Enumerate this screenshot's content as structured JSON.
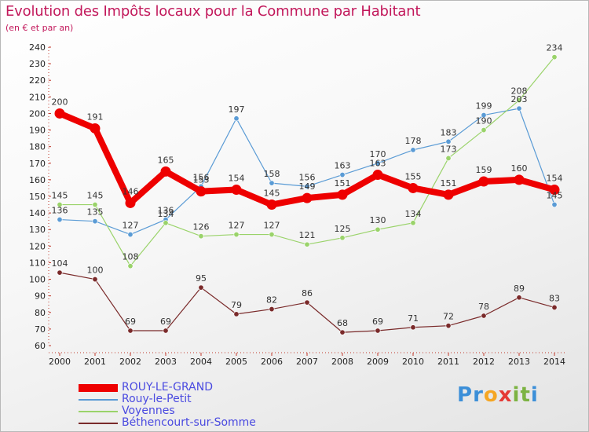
{
  "header": {
    "title": "Evolution des Impôts locaux pour la Commune par Habitant",
    "subtitle": "(en € et par an)"
  },
  "logo": {
    "text": "Proxiti",
    "letters": [
      "P",
      "r",
      "o",
      "x",
      "i",
      "t",
      "i"
    ],
    "colors": [
      "#3c8fd8",
      "#3c8fd8",
      "#f5a623",
      "#e53935",
      "#7cb342",
      "#7cb342",
      "#3c8fd8"
    ]
  },
  "chart_data": {
    "type": "line",
    "title": "Evolution des Impôts locaux pour la Commune par Habitant",
    "subtitle": "(en € et par an)",
    "xlabel": "",
    "ylabel": "",
    "x": [
      "2000",
      "2001",
      "2002",
      "2003",
      "2004",
      "2005",
      "2006",
      "2007",
      "2008",
      "2009",
      "2010",
      "2011",
      "2012",
      "2013",
      "2014"
    ],
    "ylim": [
      60,
      240
    ],
    "yticks": [
      60,
      70,
      80,
      90,
      100,
      110,
      120,
      130,
      140,
      150,
      160,
      170,
      180,
      190,
      200,
      210,
      220,
      230,
      240
    ],
    "grid": false,
    "legend_position": "bottom-left",
    "series": [
      {
        "name": "ROUY-LE-GRAND",
        "color": "#ee0000",
        "width": 8,
        "values": [
          200,
          191,
          146,
          165,
          153,
          154,
          145,
          149,
          151,
          163,
          155,
          151,
          159,
          160,
          154
        ],
        "labels": [
          "200",
          "191",
          "146",
          "165",
          "153",
          "154",
          "145",
          "149",
          "151",
          "163",
          "155",
          "151",
          "159",
          "160",
          "154"
        ]
      },
      {
        "name": "Rouy-le-Petit",
        "color": "#5a9bd5",
        "width": 1.2,
        "values": [
          136,
          135,
          127,
          136,
          156,
          197,
          158,
          156,
          163,
          170,
          178,
          183,
          199,
          203,
          145
        ],
        "labels": [
          "136",
          "135",
          "127",
          "136",
          "156",
          "197",
          "158",
          "156",
          "163",
          "170",
          "178",
          "183",
          "199",
          "203",
          "145"
        ]
      },
      {
        "name": "Voyennes",
        "color": "#9ad36a",
        "width": 1.2,
        "values": [
          145,
          145,
          108,
          134,
          126,
          127,
          127,
          121,
          125,
          130,
          134,
          173,
          190,
          208,
          234
        ],
        "labels": [
          "145",
          "145",
          "108",
          "134",
          "126",
          "127",
          "127",
          "121",
          "125",
          "130",
          "134",
          "173",
          "190",
          "208",
          "234"
        ]
      },
      {
        "name": "Béthencourt-sur-Somme",
        "color": "#7a2a2a",
        "width": 1.2,
        "values": [
          104,
          100,
          69,
          69,
          95,
          79,
          82,
          86,
          68,
          69,
          71,
          72,
          78,
          89,
          83
        ],
        "labels": [
          "104",
          "100",
          "69",
          "69",
          "95",
          "79",
          "82",
          "86",
          "68",
          "69",
          "71",
          "72",
          "78",
          "89",
          "83"
        ]
      }
    ]
  }
}
